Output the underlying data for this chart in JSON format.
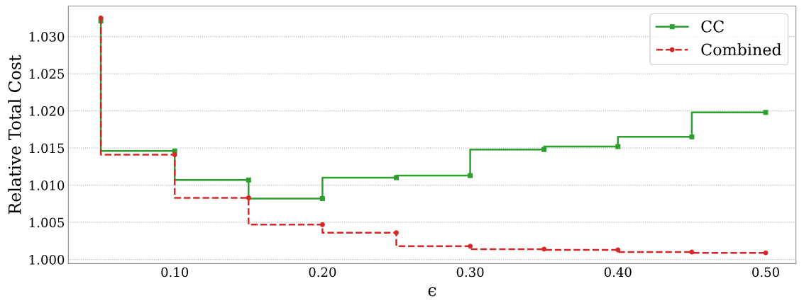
{
  "chart_data": {
    "type": "step",
    "xlabel": "ϵ",
    "ylabel": "Relative Total Cost",
    "x": [
      0.05,
      0.1,
      0.15,
      0.2,
      0.25,
      0.3,
      0.35,
      0.4,
      0.45,
      0.5
    ],
    "series": [
      {
        "name": "CC",
        "color": "#2ca02c",
        "marker": "square",
        "line_style": "solid",
        "values": [
          1.0321,
          1.0146,
          1.0107,
          1.0082,
          1.011,
          1.0113,
          1.0148,
          1.0152,
          1.0165,
          1.0198
        ]
      },
      {
        "name": "Combined",
        "color": "#d62728",
        "marker": "circle",
        "line_style": "dashed",
        "values": [
          1.0325,
          1.0141,
          1.0083,
          1.0047,
          1.0036,
          1.0018,
          1.0014,
          1.0013,
          1.001,
          1.0009
        ]
      }
    ],
    "xlim": [
      0.028,
      0.5205
    ],
    "ylim": [
      0.99945,
      1.0341
    ],
    "xticks": [
      {
        "value": 0.1,
        "label": "0.10"
      },
      {
        "value": 0.2,
        "label": "0.20"
      },
      {
        "value": 0.3,
        "label": "0.30"
      },
      {
        "value": 0.4,
        "label": "0.40"
      },
      {
        "value": 0.5,
        "label": "0.50"
      }
    ],
    "yticks": [
      {
        "value": 1.0,
        "label": "1.000"
      },
      {
        "value": 1.005,
        "label": "1.005"
      },
      {
        "value": 1.01,
        "label": "1.010"
      },
      {
        "value": 1.015,
        "label": "1.015"
      },
      {
        "value": 1.02,
        "label": "1.020"
      },
      {
        "value": 1.025,
        "label": "1.025"
      },
      {
        "value": 1.03,
        "label": "1.030"
      }
    ],
    "grid": "y",
    "legend": "top right"
  }
}
